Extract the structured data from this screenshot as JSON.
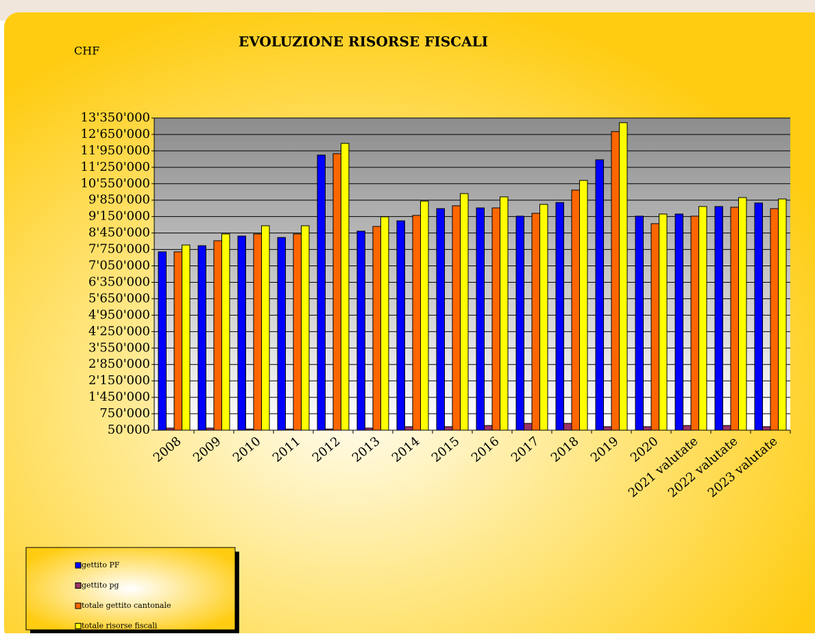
{
  "chart_data": {
    "type": "bar",
    "title": "EVOLUZIONE RISORSE FISCALI",
    "unit_label": "CHF",
    "categories": [
      "2008",
      "2009",
      "2010",
      "2011",
      "2012",
      "2013",
      "2014",
      "2015",
      "2016",
      "2017",
      "2018",
      "2019",
      "2020",
      "2021 valutate",
      "2022 valutate",
      "2023 valutate"
    ],
    "series": [
      {
        "name": "gettito PF",
        "color": "#0000ff",
        "values": [
          7650000,
          7910000,
          8320000,
          8260000,
          11770000,
          8530000,
          8970000,
          9490000,
          9520000,
          9170000,
          9750000,
          11570000,
          9170000,
          9260000,
          9580000,
          9730000
        ]
      },
      {
        "name": "gettito pg",
        "color": "#993366",
        "values": [
          140000,
          140000,
          100000,
          100000,
          100000,
          140000,
          200000,
          200000,
          250000,
          340000,
          340000,
          200000,
          200000,
          250000,
          250000,
          200000
        ]
      },
      {
        "name": "totale gettito cantonale",
        "color": "#ff6600",
        "values": [
          7650000,
          8120000,
          8410000,
          8410000,
          11830000,
          8730000,
          9200000,
          9610000,
          9520000,
          9290000,
          10280000,
          12770000,
          8850000,
          9170000,
          9550000,
          9490000
        ]
      },
      {
        "name": "totale risorse fiscali",
        "color": "#ffff00",
        "values": [
          7940000,
          8410000,
          8760000,
          8760000,
          12270000,
          9140000,
          9810000,
          10130000,
          9990000,
          9670000,
          10690000,
          13150000,
          9260000,
          9580000,
          9960000,
          9900000
        ]
      }
    ],
    "ylim": [
      50000,
      13350000
    ],
    "yticks": [
      {
        "value": 50000,
        "label": "50'000"
      },
      {
        "value": 750000,
        "label": "750'000"
      },
      {
        "value": 1450000,
        "label": "1'450'000"
      },
      {
        "value": 2150000,
        "label": "2'150'000"
      },
      {
        "value": 2850000,
        "label": "2'850'000"
      },
      {
        "value": 3550000,
        "label": "3'550'000"
      },
      {
        "value": 4250000,
        "label": "4'250'000"
      },
      {
        "value": 4950000,
        "label": "4'950'000"
      },
      {
        "value": 5650000,
        "label": "5'650'000"
      },
      {
        "value": 6350000,
        "label": "6'350'000"
      },
      {
        "value": 7050000,
        "label": "7'050'000"
      },
      {
        "value": 7750000,
        "label": "7'750'000"
      },
      {
        "value": 8450000,
        "label": "8'450'000"
      },
      {
        "value": 9150000,
        "label": "9'150'000"
      },
      {
        "value": 9850000,
        "label": "9'850'000"
      },
      {
        "value": 10550000,
        "label": "10'550'000"
      },
      {
        "value": 11250000,
        "label": "11'250'000"
      },
      {
        "value": 11950000,
        "label": "11'950'000"
      },
      {
        "value": 12650000,
        "label": "12'650'000"
      },
      {
        "value": 13350000,
        "label": "13'350'000"
      }
    ],
    "grid": true,
    "legend": "lower left"
  }
}
